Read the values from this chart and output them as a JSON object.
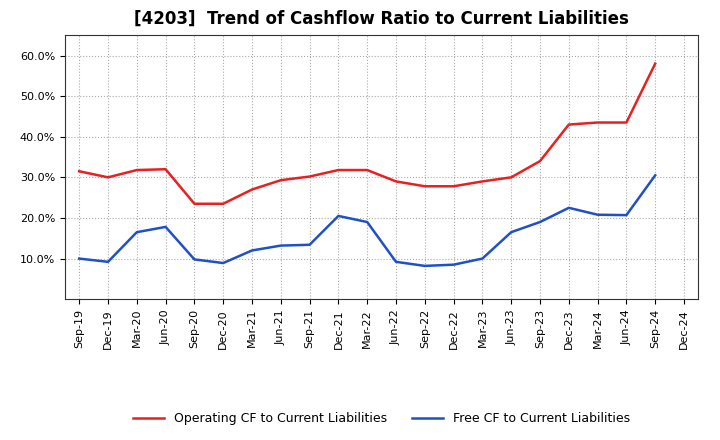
{
  "title": "[4203]  Trend of Cashflow Ratio to Current Liabilities",
  "x_labels": [
    "Sep-19",
    "Dec-19",
    "Mar-20",
    "Jun-20",
    "Sep-20",
    "Dec-20",
    "Mar-21",
    "Jun-21",
    "Sep-21",
    "Dec-21",
    "Mar-22",
    "Jun-22",
    "Sep-22",
    "Dec-22",
    "Mar-23",
    "Jun-23",
    "Sep-23",
    "Dec-23",
    "Mar-24",
    "Jun-24",
    "Sep-24",
    "Dec-24"
  ],
  "operating_cf": [
    0.315,
    0.3,
    0.318,
    0.32,
    0.235,
    0.235,
    0.27,
    0.293,
    0.302,
    0.318,
    0.318,
    0.29,
    0.278,
    0.278,
    0.29,
    0.3,
    0.34,
    0.43,
    0.435,
    0.435,
    0.58,
    null
  ],
  "free_cf": [
    0.1,
    0.092,
    0.165,
    0.178,
    0.098,
    0.089,
    0.12,
    0.132,
    0.134,
    0.205,
    0.19,
    0.092,
    0.082,
    0.085,
    0.1,
    0.165,
    0.19,
    0.225,
    0.208,
    0.207,
    0.305,
    null
  ],
  "operating_color": "#e82020",
  "free_color": "#2050c8",
  "ylim": [
    0.0,
    0.65
  ],
  "yticks": [
    0.1,
    0.2,
    0.3,
    0.4,
    0.5,
    0.6
  ],
  "background_color": "#ffffff",
  "grid_color": "#aaaaaa",
  "legend_op": "Operating CF to Current Liabilities",
  "legend_free": "Free CF to Current Liabilities",
  "title_fontsize": 12,
  "line_width": 1.8
}
